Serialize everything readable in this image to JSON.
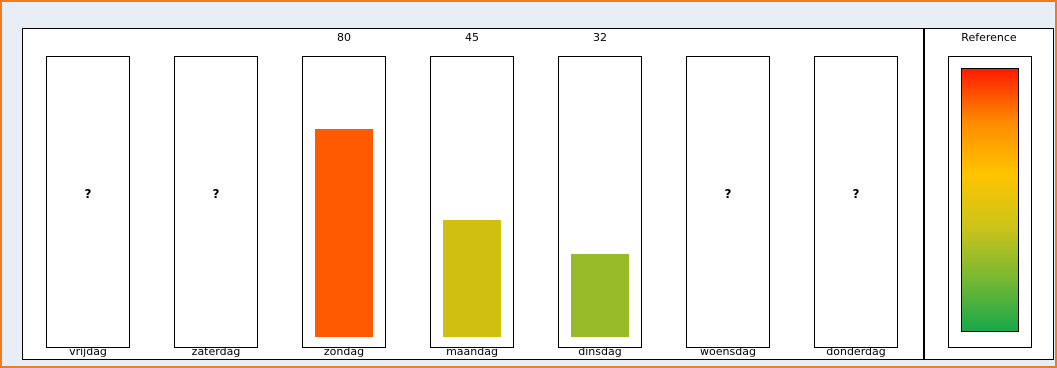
{
  "chart_data": {
    "type": "bar",
    "categories": [
      "vrijdag",
      "zaterdag",
      "zondag",
      "maandag",
      "dinsdag",
      "woensdag",
      "donderdag"
    ],
    "values": [
      null,
      null,
      80,
      45,
      32,
      null,
      null
    ],
    "value_labels": [
      "",
      "",
      "80",
      "45",
      "32",
      "",
      ""
    ],
    "missing_marker": "?",
    "bar_colors": [
      "",
      "",
      "#ff5a00",
      "#d0bf10",
      "#97bb26",
      "",
      ""
    ],
    "ylim": [
      0,
      100
    ],
    "grid": false
  },
  "reference": {
    "title": "Reference",
    "gradient_colors": [
      "#ff1a00",
      "#ff8a00",
      "#ffc400",
      "#cdc41a",
      "#78b832",
      "#18a84a"
    ]
  }
}
